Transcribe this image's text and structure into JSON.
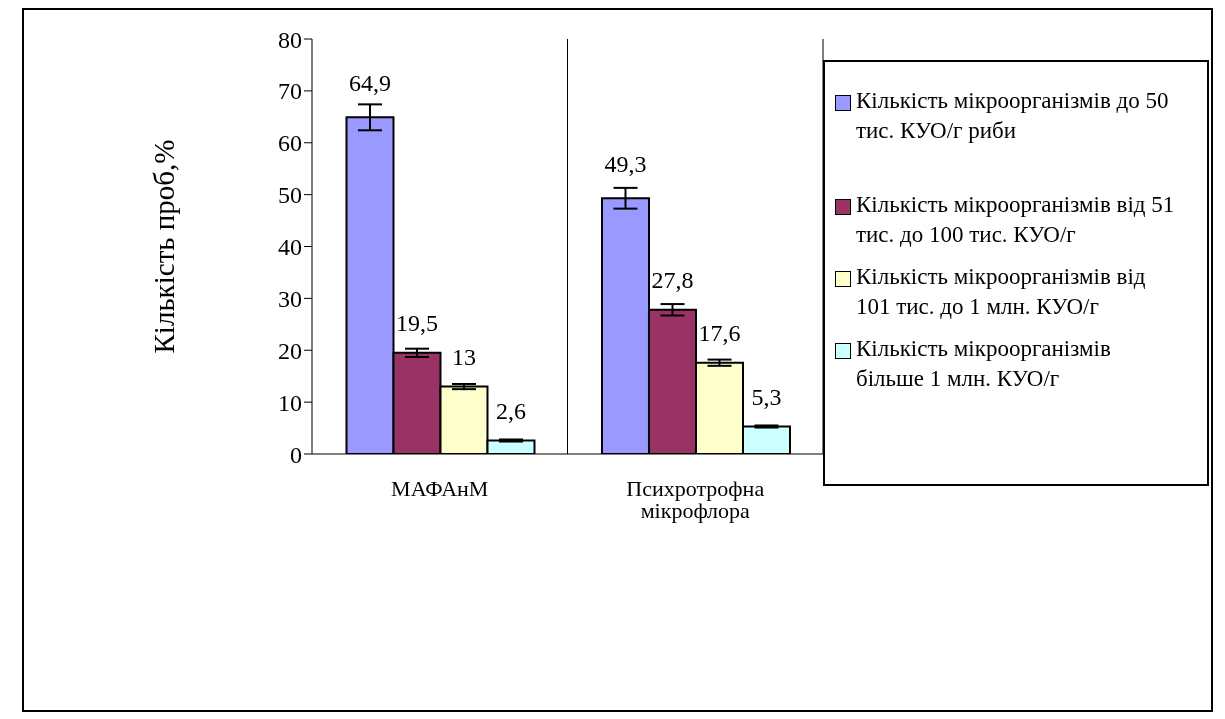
{
  "chart_data": {
    "type": "bar",
    "ylabel": "Кількість проб,%",
    "categories": [
      "МАФАнМ",
      "Психротрофна мікрофлора"
    ],
    "series": [
      {
        "name": "Кількість мікроорганізмів до 50 тис. КУО/г риби",
        "color": "#9999ff",
        "values": [
          64.9,
          49.3
        ],
        "errors": [
          2.5,
          2
        ],
        "value_labels": [
          "64,9",
          "49,3"
        ]
      },
      {
        "name": "Кількість мікроорганізмів від 51 тис. до 100 тис. КУО/г",
        "color": "#993366",
        "values": [
          19.5,
          27.8
        ],
        "errors": [
          0.8,
          1.1
        ],
        "value_labels": [
          "19,5",
          "27,8"
        ]
      },
      {
        "name": "Кількість мікроорганізмів від 101 тис. до 1 млн. КУО/г",
        "color": "#ffffcc",
        "values": [
          13,
          17.6
        ],
        "errors": [
          0.5,
          0.6
        ],
        "value_labels": [
          "13",
          "17,6"
        ]
      },
      {
        "name": "Кількість мікроорганізмів більше 1 млн. КУО/г",
        "color": "#ccffff",
        "values": [
          2.6,
          5.3
        ],
        "errors": [
          0.2,
          0.2
        ],
        "value_labels": [
          "2,6",
          "5,3"
        ]
      }
    ],
    "ylim": [
      0,
      80
    ],
    "yticks": [
      0,
      10,
      20,
      30,
      40,
      50,
      60,
      70,
      80
    ],
    "grid": "x",
    "legend": "right"
  }
}
